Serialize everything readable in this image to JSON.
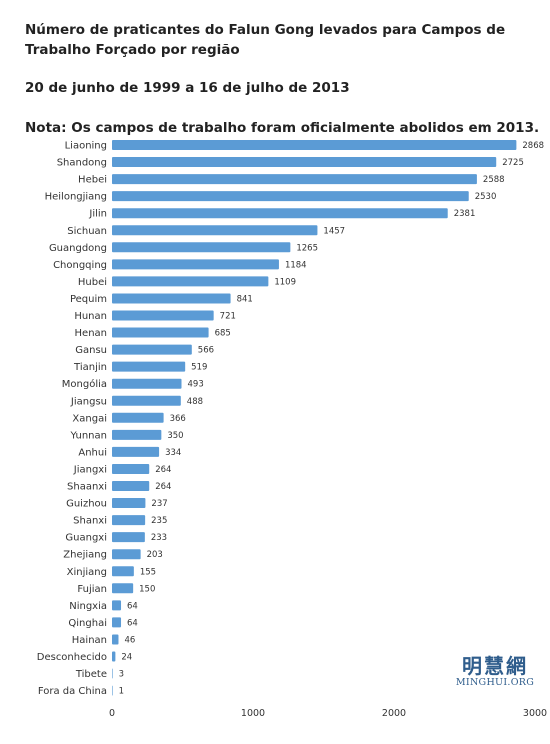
{
  "header": {
    "title": "Número de praticantes do Falun Gong levados para Campos de Trabalho Forçado por região",
    "subtitle": "20 de junho de 1999 a 16 de julho de 2013",
    "note": "Nota: Os campos de trabalho foram oficialmente abolidos em 2013."
  },
  "logo": {
    "chinese": "明慧網",
    "english": "MINGHUI.ORG"
  },
  "chart_data": {
    "type": "bar",
    "orientation": "horizontal",
    "categories": [
      "Liaoning",
      "Shandong",
      "Hebei",
      "Heilongjiang",
      "Jilin",
      "Sichuan",
      "Guangdong",
      "Chongqing",
      "Hubei",
      "Pequim",
      "Hunan",
      "Henan",
      "Gansu",
      "Tianjin",
      "Mongólia",
      "Jiangsu",
      "Xangai",
      "Yunnan",
      "Anhui",
      "Jiangxi",
      "Shaanxi",
      "Guizhou",
      "Shanxi",
      "Guangxi",
      "Zhejiang",
      "Xinjiang",
      "Fujian",
      "Ningxia",
      "Qinghai",
      "Hainan",
      "Desconhecido",
      "Tibete",
      "Fora da China"
    ],
    "values": [
      2868,
      2725,
      2588,
      2530,
      2381,
      1457,
      1265,
      1184,
      1109,
      841,
      721,
      685,
      566,
      519,
      493,
      488,
      366,
      350,
      334,
      264,
      264,
      237,
      235,
      233,
      203,
      155,
      150,
      64,
      64,
      46,
      24,
      3,
      1
    ],
    "xlim": [
      0,
      3000
    ],
    "xticks": [
      0,
      1000,
      2000,
      3000
    ],
    "bar_color": "#5b9bd5",
    "grid": false,
    "legend": "none"
  }
}
